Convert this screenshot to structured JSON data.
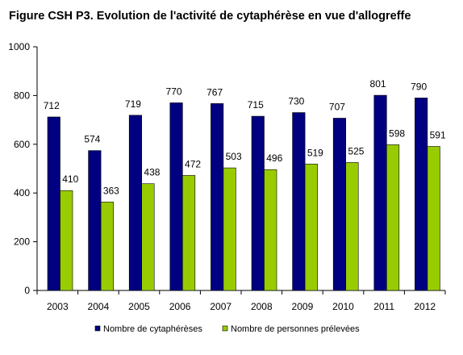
{
  "chart_data": {
    "type": "bar",
    "title": "Figure CSH P3. Evolution de l'activité de cytaphérèse en vue d'allogreffe",
    "categories": [
      "2003",
      "2004",
      "2005",
      "2006",
      "2007",
      "2008",
      "2009",
      "2010",
      "2011",
      "2012"
    ],
    "series": [
      {
        "name": "Nombre de cytaphérèses",
        "values": [
          712,
          574,
          719,
          770,
          767,
          715,
          730,
          707,
          801,
          790
        ],
        "color": "#000080"
      },
      {
        "name": "Nombre de personnes prélevées",
        "values": [
          410,
          363,
          438,
          472,
          503,
          496,
          519,
          525,
          598,
          591
        ],
        "color": "#99CC00"
      }
    ],
    "ylim": [
      0,
      1000
    ],
    "yticks": [
      0,
      200,
      400,
      600,
      800,
      1000
    ],
    "xlabel": "",
    "ylabel": "",
    "grid": false,
    "legend": "bottom"
  }
}
